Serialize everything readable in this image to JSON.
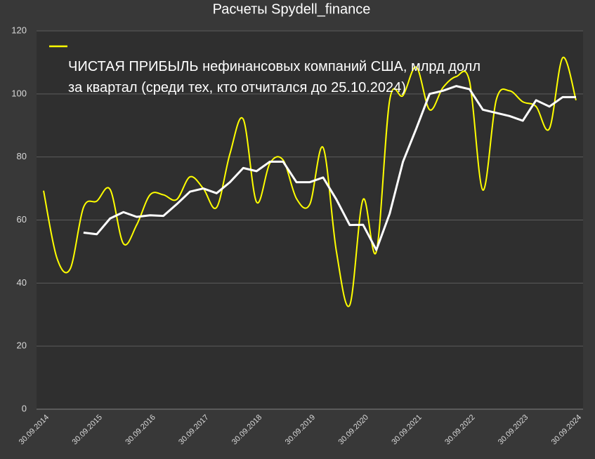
{
  "chart_data": {
    "type": "line",
    "title": "Расчеты Spydell_finance",
    "categories": [
      "30.09.2014",
      null,
      null,
      null,
      "30.09.2015",
      null,
      null,
      null,
      "30.09.2016",
      null,
      null,
      null,
      "30.09.2017",
      null,
      null,
      null,
      "30.09.2018",
      null,
      null,
      null,
      "30.09.2019",
      null,
      null,
      null,
      "30.09.2020",
      null,
      null,
      null,
      "30.09.2021",
      null,
      null,
      null,
      "30.09.2022",
      null,
      null,
      null,
      "30.09.2023",
      null,
      null,
      null,
      "30.09.2024"
    ],
    "series": [
      {
        "name": "ЧИСТАЯ ПРИБЫЛЬ нефинансовых компаний США, млрд долл\nза квартал (среди тех, кто отчитался до 25.10.2024)",
        "color": "#ffff00",
        "smooth": true,
        "values": [
          69.3,
          48,
          44.5,
          64,
          66,
          69.7,
          52.5,
          58.5,
          68,
          68,
          66.5,
          73.7,
          70,
          64,
          81,
          92,
          65.7,
          78,
          79,
          66.8,
          65,
          83,
          50,
          33,
          66.5,
          50,
          98,
          99.5,
          108.5,
          95,
          102,
          105.5,
          104,
          69.5,
          98,
          101,
          97.5,
          96,
          89,
          111.5,
          98
        ]
      },
      {
        "color": "#ffffff",
        "smooth": false,
        "values": [
          null,
          null,
          null,
          56,
          55.5,
          60.5,
          62.5,
          61,
          61.5,
          61.3,
          65,
          69,
          70,
          68.5,
          72,
          76.5,
          75.5,
          78.5,
          78.5,
          72,
          72,
          73.5,
          66.5,
          58.4,
          58.5,
          50.5,
          62,
          78.5,
          89,
          100,
          101,
          102.5,
          101.5,
          95,
          94,
          93,
          91.5,
          98,
          96,
          99,
          99
        ]
      }
    ],
    "ylim": [
      0,
      120
    ],
    "yticks": [
      0,
      20,
      40,
      60,
      80,
      100,
      120
    ],
    "grid": true
  }
}
